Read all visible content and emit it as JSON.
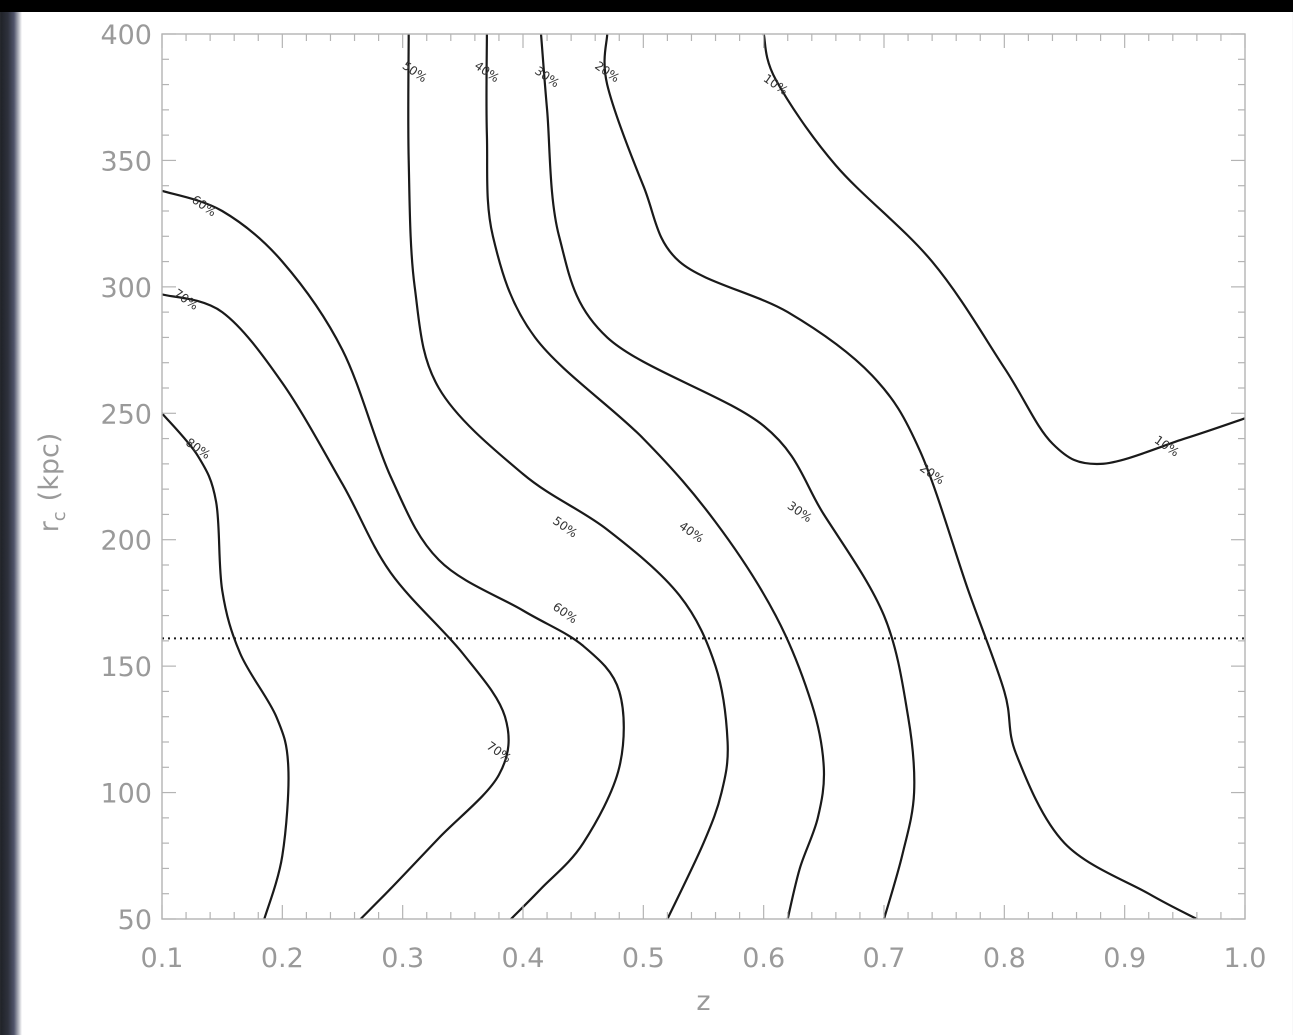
{
  "chart_data": {
    "type": "contour",
    "title": "",
    "xlabel": "z",
    "ylabel": "r",
    "ylabel_sub": "c",
    "ylabel_unit": "(kpc)",
    "xlim": [
      0.1,
      1.0
    ],
    "ylim": [
      50,
      400
    ],
    "x_ticks": [
      0.1,
      0.2,
      0.3,
      0.4,
      0.5,
      0.6,
      0.7,
      0.8,
      0.9,
      1.0
    ],
    "x_tick_labels": [
      "0.1",
      "0.2",
      "0.3",
      "0.4",
      "0.5",
      "0.6",
      "0.7",
      "0.8",
      "0.9",
      "1.0"
    ],
    "y_ticks": [
      50,
      100,
      150,
      200,
      250,
      300,
      350,
      400
    ],
    "y_tick_labels": [
      "50",
      "100",
      "150",
      "200",
      "250",
      "300",
      "350",
      "400"
    ],
    "grid": false,
    "reference_line": {
      "orientation": "horizontal",
      "y": 161,
      "style": "dotted"
    },
    "contours": [
      {
        "name": "80%",
        "points": [
          [
            0.1,
            250
          ],
          [
            0.13,
            233
          ],
          [
            0.145,
            215
          ],
          [
            0.15,
            180
          ],
          [
            0.165,
            155
          ],
          [
            0.195,
            130
          ],
          [
            0.205,
            110
          ],
          [
            0.2,
            75
          ],
          [
            0.185,
            50
          ]
        ],
        "labels": [
          {
            "text": "80%",
            "x": 0.13,
            "y": 236
          }
        ]
      },
      {
        "name": "70%",
        "points": [
          [
            0.1,
            297
          ],
          [
            0.15,
            290
          ],
          [
            0.2,
            262
          ],
          [
            0.25,
            222
          ],
          [
            0.29,
            187
          ],
          [
            0.35,
            155
          ],
          [
            0.385,
            130
          ],
          [
            0.38,
            107
          ],
          [
            0.33,
            82
          ],
          [
            0.29,
            62
          ],
          [
            0.265,
            50
          ]
        ],
        "labels": [
          {
            "text": "70%",
            "x": 0.12,
            "y": 295
          },
          {
            "text": "70%",
            "x": 0.38,
            "y": 116
          }
        ]
      },
      {
        "name": "60%",
        "points": [
          [
            0.1,
            338
          ],
          [
            0.15,
            330
          ],
          [
            0.2,
            310
          ],
          [
            0.25,
            275
          ],
          [
            0.29,
            225
          ],
          [
            0.33,
            192
          ],
          [
            0.4,
            172
          ],
          [
            0.45,
            158
          ],
          [
            0.48,
            140
          ],
          [
            0.48,
            110
          ],
          [
            0.45,
            80
          ],
          [
            0.415,
            62
          ],
          [
            0.39,
            50
          ]
        ],
        "labels": [
          {
            "text": "60%",
            "x": 0.135,
            "y": 332
          },
          {
            "text": "60%",
            "x": 0.435,
            "y": 171
          }
        ]
      },
      {
        "name": "50%",
        "points": [
          [
            0.305,
            400
          ],
          [
            0.305,
            350
          ],
          [
            0.31,
            300
          ],
          [
            0.33,
            260
          ],
          [
            0.4,
            226
          ],
          [
            0.47,
            204
          ],
          [
            0.53,
            178
          ],
          [
            0.56,
            150
          ],
          [
            0.57,
            120
          ],
          [
            0.565,
            100
          ],
          [
            0.55,
            80
          ],
          [
            0.52,
            50
          ]
        ],
        "labels": [
          {
            "text": "50%",
            "x": 0.31,
            "y": 385
          },
          {
            "text": "50%",
            "x": 0.435,
            "y": 205
          }
        ]
      },
      {
        "name": "40%",
        "points": [
          [
            0.37,
            400
          ],
          [
            0.37,
            360
          ],
          [
            0.375,
            320
          ],
          [
            0.41,
            280
          ],
          [
            0.5,
            240
          ],
          [
            0.56,
            207
          ],
          [
            0.61,
            170
          ],
          [
            0.64,
            135
          ],
          [
            0.65,
            110
          ],
          [
            0.645,
            90
          ],
          [
            0.63,
            70
          ],
          [
            0.62,
            50
          ]
        ],
        "labels": [
          {
            "text": "40%",
            "x": 0.37,
            "y": 385
          },
          {
            "text": "40%",
            "x": 0.54,
            "y": 203
          }
        ]
      },
      {
        "name": "30%",
        "points": [
          [
            0.415,
            400
          ],
          [
            0.42,
            370
          ],
          [
            0.43,
            320
          ],
          [
            0.47,
            280
          ],
          [
            0.6,
            245
          ],
          [
            0.65,
            210
          ],
          [
            0.7,
            170
          ],
          [
            0.72,
            130
          ],
          [
            0.725,
            100
          ],
          [
            0.715,
            75
          ],
          [
            0.7,
            50
          ]
        ],
        "labels": [
          {
            "text": "30%",
            "x": 0.42,
            "y": 383
          },
          {
            "text": "30%",
            "x": 0.63,
            "y": 211
          }
        ]
      },
      {
        "name": "20%",
        "points": [
          [
            0.47,
            400
          ],
          [
            0.47,
            380
          ],
          [
            0.5,
            340
          ],
          [
            0.53,
            310
          ],
          [
            0.62,
            290
          ],
          [
            0.69,
            265
          ],
          [
            0.73,
            235
          ],
          [
            0.77,
            180
          ],
          [
            0.8,
            140
          ],
          [
            0.81,
            115
          ],
          [
            0.85,
            80
          ],
          [
            0.92,
            60
          ],
          [
            0.96,
            50
          ]
        ],
        "labels": [
          {
            "text": "20%",
            "x": 0.47,
            "y": 385
          },
          {
            "text": "20%",
            "x": 0.74,
            "y": 226
          }
        ]
      },
      {
        "name": "10%",
        "points": [
          [
            0.6,
            400
          ],
          [
            0.61,
            382
          ],
          [
            0.66,
            348
          ],
          [
            0.74,
            310
          ],
          [
            0.8,
            268
          ],
          [
            0.84,
            238
          ],
          [
            0.88,
            230
          ],
          [
            0.95,
            240
          ],
          [
            1.0,
            248
          ]
        ],
        "labels": [
          {
            "text": "10%",
            "x": 0.61,
            "y": 380
          },
          {
            "text": "10%",
            "x": 0.935,
            "y": 237
          }
        ]
      }
    ]
  }
}
